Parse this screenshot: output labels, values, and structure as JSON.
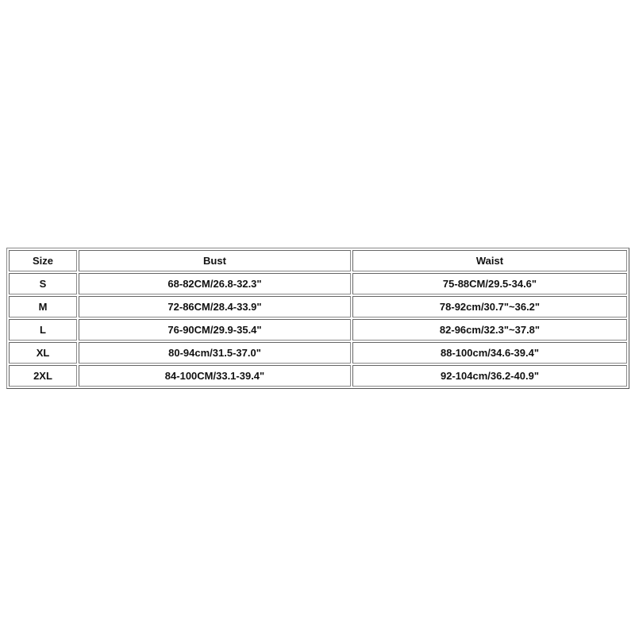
{
  "size_chart": {
    "headers": [
      "Size",
      "Bust",
      "Waist"
    ],
    "rows": [
      [
        "S",
        "68-82CM/26.8-32.3\"",
        "75-88CM/29.5-34.6\""
      ],
      [
        "M",
        "72-86CM/28.4-33.9\"",
        "78-92cm/30.7\"~36.2\""
      ],
      [
        "L",
        "76-90CM/29.9-35.4\"",
        "82-96cm/32.3\"~37.8\""
      ],
      [
        "XL",
        "80-94cm/31.5-37.0\"",
        "88-100cm/34.6-39.4\""
      ],
      [
        "2XL",
        "84-100CM/33.1-39.4\"",
        "92-104cm/36.2-40.9\""
      ]
    ]
  }
}
